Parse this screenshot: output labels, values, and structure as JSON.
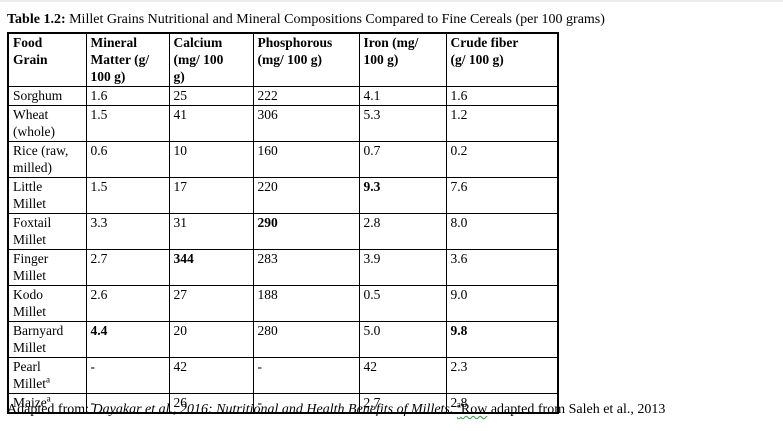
{
  "caption": {
    "label": "Table 1.2:",
    "text": " Millet Grains Nutritional and Mineral Compositions Compared to Fine Cereals (per 100 grams)"
  },
  "table": {
    "headers": [
      "Food\nGrain",
      "Mineral\nMatter (g/\n100 g)",
      "Calcium\n(mg/ 100\ng)",
      "Phosphorous\n(mg/ 100 g)",
      "Iron (mg/\n100 g)",
      "Crude fiber\n(g/ 100 g)"
    ],
    "rows": [
      {
        "name": "Sorghum",
        "sup": "",
        "values": [
          "1.6",
          "25",
          "222",
          "4.1",
          "1.6"
        ],
        "bold": []
      },
      {
        "name": "Wheat\n(whole)",
        "sup": "",
        "values": [
          "1.5",
          "41",
          "306",
          "5.3",
          "1.2"
        ],
        "bold": []
      },
      {
        "name": "Rice (raw,\nmilled)",
        "sup": "",
        "values": [
          "0.6",
          "10",
          "160",
          "0.7",
          "0.2"
        ],
        "bold": []
      },
      {
        "name": "Little\nMillet",
        "sup": "",
        "values": [
          "1.5",
          "17",
          "220",
          "9.3",
          "7.6"
        ],
        "bold": [
          3
        ]
      },
      {
        "name": "Foxtail\nMillet",
        "sup": "",
        "values": [
          "3.3",
          "31",
          "290",
          "2.8",
          "8.0"
        ],
        "bold": [
          2
        ]
      },
      {
        "name": "Finger\nMillet",
        "sup": "",
        "values": [
          "2.7",
          "344",
          "283",
          "3.9",
          "3.6"
        ],
        "bold": [
          1
        ]
      },
      {
        "name": "Kodo\nMillet",
        "sup": "",
        "values": [
          "2.6",
          "27",
          "188",
          "0.5",
          "9.0"
        ],
        "bold": []
      },
      {
        "name": "Barnyard\nMillet",
        "sup": "",
        "values": [
          "4.4",
          "20",
          "280",
          "5.0",
          "9.8"
        ],
        "bold": [
          0,
          4
        ]
      },
      {
        "name": "Pearl\nMillet",
        "sup": "a",
        "values": [
          "-",
          "42",
          "-",
          "42",
          "2.3"
        ],
        "bold": []
      },
      {
        "name": "Maize",
        "sup": "a",
        "values": [
          "-",
          "26",
          "-",
          "2.7",
          "2.8"
        ],
        "bold": []
      }
    ]
  },
  "footnote": {
    "prefix": "Adapted from: ",
    "citation_italic": "Dayakar et al., 2016: Nutritional and Health Benefits of Millets.",
    "marker_sup": "a",
    "marker_word": "Row",
    "suffix": " adapted from Saleh et al., 2013"
  },
  "colors": {
    "text": "#000000",
    "border": "#000000",
    "background": "#ffffff",
    "squiggle": "#2f9e44"
  }
}
